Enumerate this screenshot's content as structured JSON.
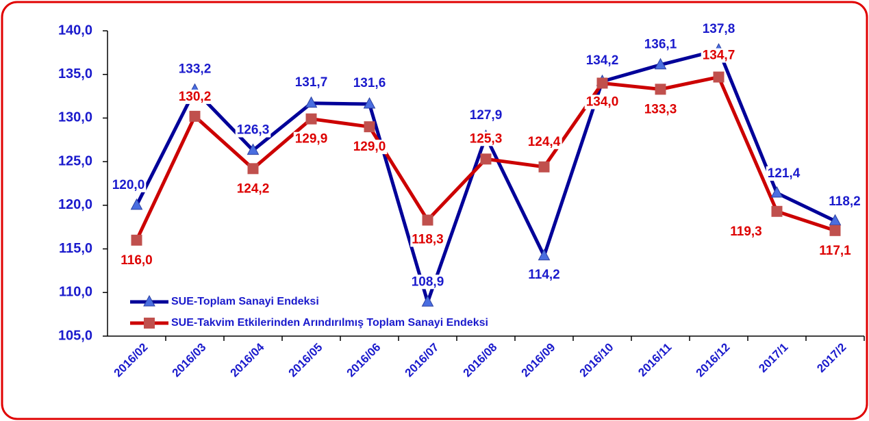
{
  "chart_data": {
    "type": "line",
    "categories": [
      "2016/02",
      "2016/03",
      "2016/04",
      "2016/05",
      "2016/06",
      "2016/07",
      "2016/08",
      "2016/09",
      "2016/10",
      "2016/11",
      "2016/12",
      "2017/1",
      "2017/2"
    ],
    "series": [
      {
        "name": "SUE-Toplam Sanayi Endeksi",
        "color": "#000099",
        "marker": "triangle",
        "marker_color": "#4a6ee0",
        "label_color": "#1a1acc",
        "values": [
          120.0,
          133.2,
          126.3,
          131.7,
          131.6,
          108.9,
          127.9,
          114.2,
          134.2,
          136.1,
          137.8,
          121.4,
          118.2
        ],
        "value_labels": [
          "120,0",
          "133,2",
          "126,3",
          "131,7",
          "131,6",
          "108,9",
          "127,9",
          "114,2",
          "134,2",
          "136,1",
          "137,8",
          "121,4",
          "118,2"
        ]
      },
      {
        "name": "SUE-Takvim Etkilerinden Arındırılmış Toplam Sanayi Endeksi",
        "color": "#cc0000",
        "marker": "square",
        "marker_color": "#c0504d",
        "label_color": "#dd0000",
        "values": [
          116.0,
          130.2,
          124.2,
          129.9,
          129.0,
          118.3,
          125.3,
          124.4,
          134.0,
          133.3,
          134.7,
          119.3,
          117.1
        ],
        "value_labels": [
          "116,0",
          "130,2",
          "124,2",
          "129,9",
          "129,0",
          "118,3",
          "125,3",
          "124,4",
          "134,0",
          "133,3",
          "134,7",
          "119,3",
          "117,1"
        ]
      }
    ],
    "ylim": [
      105,
      140
    ],
    "yticks": [
      {
        "value": 105,
        "label": "105,0"
      },
      {
        "value": 110,
        "label": "110,0"
      },
      {
        "value": 115,
        "label": "115,0"
      },
      {
        "value": 120,
        "label": "120,0"
      },
      {
        "value": 125,
        "label": "125,0"
      },
      {
        "value": 130,
        "label": "130,0"
      },
      {
        "value": 135,
        "label": "135,0"
      },
      {
        "value": 140,
        "label": "140,0"
      }
    ],
    "legend": "lower left"
  }
}
